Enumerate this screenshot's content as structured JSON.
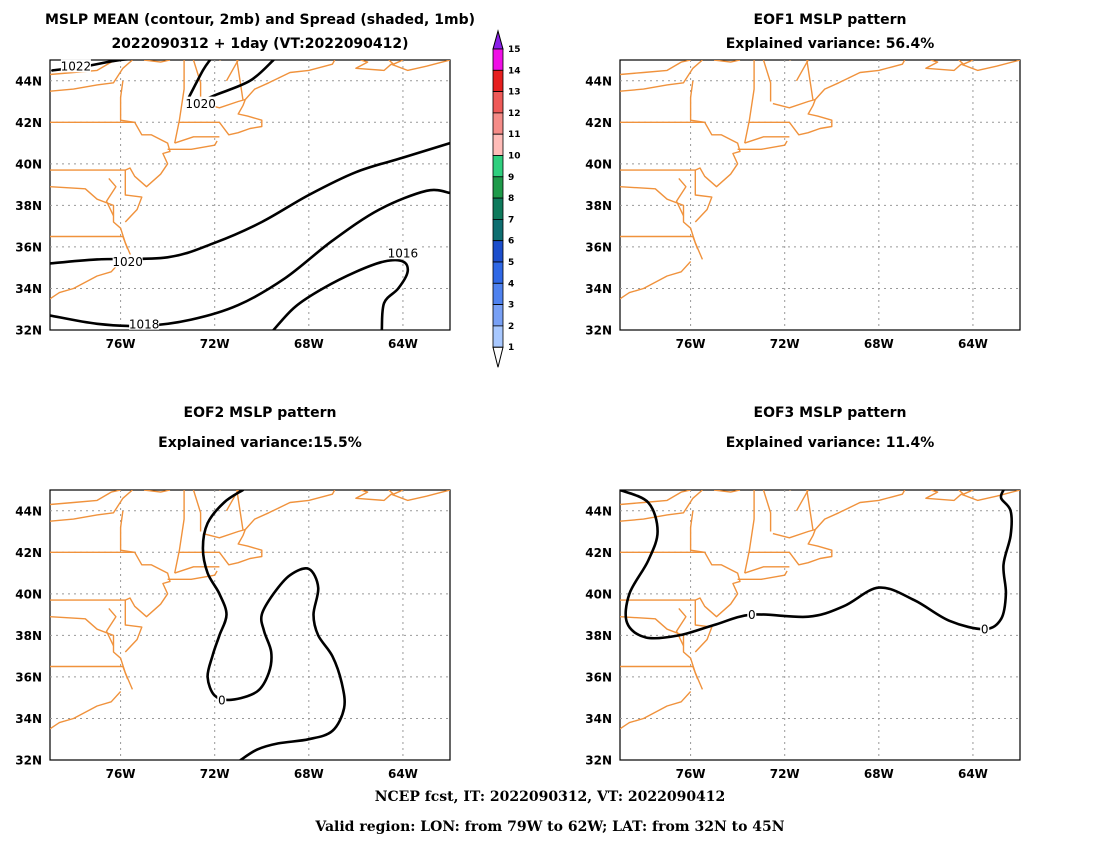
{
  "chart_data": [
    {
      "type": "contour",
      "title_lines": [
        "MSLP MEAN (contour, 2mb) and Spread (shaded, 1mb)",
        "2022090312 + 1day (VT:2022090412)"
      ],
      "region": {
        "lon": [
          -79,
          -62
        ],
        "lat": [
          32,
          45
        ]
      },
      "x_ticks": [
        -76,
        -72,
        -68,
        -64
      ],
      "x_tick_labels": [
        "76W",
        "72W",
        "68W",
        "64W"
      ],
      "y_ticks": [
        32,
        34,
        36,
        38,
        40,
        42,
        44
      ],
      "y_tick_labels": [
        "32N",
        "34N",
        "36N",
        "38N",
        "40N",
        "42N",
        "44N"
      ],
      "grid": true,
      "contours": [
        {
          "level": 1022,
          "label": "1022",
          "label_at": [
            -77.9,
            44.7
          ],
          "points": [
            [
              -78.9,
              44.5
            ],
            [
              -77.5,
              44.7
            ],
            [
              -76.0,
              45.0
            ],
            [
              -74.0,
              45.2
            ]
          ]
        },
        {
          "level": 1020,
          "label": "1020",
          "label_at": [
            -72.6,
            42.9
          ],
          "points": [
            [
              -73.0,
              42.8
            ],
            [
              -72.0,
              43.3
            ],
            [
              -70.5,
              44.0
            ],
            [
              -69.5,
              45.0
            ]
          ]
        },
        {
          "level": 1020,
          "label": "",
          "label_at": null,
          "points": [
            [
              -73.1,
              43.2
            ],
            [
              -72.5,
              44.5
            ],
            [
              -72.2,
              45.0
            ]
          ]
        },
        {
          "level": 1020,
          "label": "1020",
          "label_at": [
            -75.7,
            35.3
          ],
          "points": [
            [
              -79.0,
              35.2
            ],
            [
              -77.0,
              35.4
            ],
            [
              -74.0,
              35.5
            ],
            [
              -72.0,
              36.2
            ],
            [
              -70.0,
              37.2
            ],
            [
              -68.0,
              38.5
            ],
            [
              -66.0,
              39.6
            ],
            [
              -64.0,
              40.3
            ],
            [
              -62.0,
              41.0
            ]
          ]
        },
        {
          "level": 1018,
          "label": "1018",
          "label_at": [
            -75.0,
            32.3
          ],
          "points": [
            [
              -79.0,
              32.7
            ],
            [
              -77.0,
              32.3
            ],
            [
              -75.0,
              32.2
            ],
            [
              -73.0,
              32.5
            ],
            [
              -71.0,
              33.2
            ],
            [
              -69.0,
              34.5
            ],
            [
              -67.0,
              36.3
            ],
            [
              -65.0,
              37.8
            ],
            [
              -63.0,
              38.7
            ],
            [
              -62.0,
              38.6
            ]
          ]
        },
        {
          "level": 1016,
          "label": "",
          "label_at": null,
          "points": [
            [
              -69.5,
              32.0
            ],
            [
              -68.6,
              33.1
            ],
            [
              -67.4,
              34.0
            ],
            [
              -66.0,
              34.8
            ],
            [
              -64.8,
              35.3
            ],
            [
              -64.0,
              35.3
            ],
            [
              -63.8,
              34.8
            ],
            [
              -64.2,
              34.0
            ],
            [
              -64.8,
              33.3
            ],
            [
              -64.9,
              32.0
            ]
          ]
        },
        {
          "level": 1016,
          "label": "1016",
          "label_at": [
            -64.0,
            35.7
          ],
          "points": []
        }
      ],
      "colorbar": {
        "levels": [
          1,
          2,
          3,
          4,
          5,
          6,
          7,
          8,
          9,
          10,
          11,
          12,
          13,
          14,
          15
        ],
        "labels": [
          "1",
          "2",
          "3",
          "4",
          "5",
          "6",
          "7",
          "8",
          "9",
          "10",
          "11",
          "12",
          "13",
          "14",
          "15"
        ],
        "colors": [
          "#a8c8ff",
          "#78a0f5",
          "#4f82ef",
          "#2f68e6",
          "#1c4ecc",
          "#0e6e70",
          "#0e7a5c",
          "#1e9a4a",
          "#2fcf7e",
          "#ffbcb8",
          "#f58c88",
          "#ee5a58",
          "#e61f1f",
          "#f00fe6",
          "#8a1fe8"
        ]
      }
    },
    {
      "type": "contour",
      "title_lines": [
        "EOF1 MSLP pattern",
        "Explained variance: 56.4%"
      ],
      "region": {
        "lon": [
          -79,
          -62
        ],
        "lat": [
          32,
          45
        ]
      },
      "x_tick_labels": [
        "76W",
        "72W",
        "68W",
        "64W"
      ],
      "y_tick_labels": [
        "32N",
        "34N",
        "36N",
        "38N",
        "40N",
        "42N",
        "44N"
      ],
      "grid": true,
      "contours": []
    },
    {
      "type": "contour",
      "title_lines": [
        "EOF2 MSLP pattern",
        "Explained variance:15.5%"
      ],
      "region": {
        "lon": [
          -79,
          -62
        ],
        "lat": [
          32,
          45
        ]
      },
      "x_tick_labels": [
        "76W",
        "72W",
        "68W",
        "64W"
      ],
      "y_tick_labels": [
        "32N",
        "34N",
        "36N",
        "38N",
        "40N",
        "42N",
        "44N"
      ],
      "grid": true,
      "contours": [
        {
          "level": 0,
          "label": "0",
          "label_at": [
            -71.7,
            34.9
          ],
          "points": [
            [
              -70.8,
              45.0
            ],
            [
              -71.6,
              44.4
            ],
            [
              -72.3,
              43.4
            ],
            [
              -72.5,
              42.2
            ],
            [
              -72.3,
              41.0
            ],
            [
              -71.8,
              40.0
            ],
            [
              -71.5,
              39.0
            ],
            [
              -71.8,
              38.0
            ],
            [
              -72.1,
              37.0
            ],
            [
              -72.3,
              36.0
            ],
            [
              -72.0,
              35.1
            ],
            [
              -71.3,
              34.9
            ],
            [
              -70.2,
              35.3
            ],
            [
              -69.7,
              36.2
            ],
            [
              -69.6,
              37.2
            ],
            [
              -69.9,
              38.2
            ],
            [
              -70.0,
              39.0
            ],
            [
              -69.5,
              40.0
            ],
            [
              -68.8,
              40.9
            ],
            [
              -68.0,
              41.2
            ],
            [
              -67.6,
              40.3
            ],
            [
              -67.8,
              39.0
            ],
            [
              -67.6,
              38.0
            ],
            [
              -67.0,
              37.0
            ],
            [
              -66.6,
              35.7
            ],
            [
              -66.5,
              34.5
            ],
            [
              -67.0,
              33.4
            ],
            [
              -68.0,
              33.0
            ],
            [
              -69.3,
              32.8
            ],
            [
              -70.2,
              32.5
            ],
            [
              -70.9,
              32.0
            ]
          ]
        }
      ]
    },
    {
      "type": "contour",
      "title_lines": [
        "EOF3 MSLP pattern",
        "Explained variance: 11.4%"
      ],
      "region": {
        "lon": [
          -79,
          -62
        ],
        "lat": [
          32,
          45
        ]
      },
      "x_tick_labels": [
        "76W",
        "72W",
        "68W",
        "64W"
      ],
      "y_tick_labels": [
        "32N",
        "34N",
        "36N",
        "38N",
        "40N",
        "42N",
        "44N"
      ],
      "grid": true,
      "contours": [
        {
          "level": 0,
          "label": "0",
          "label_at": [
            -73.4,
            39.0
          ],
          "points": [
            [
              -79.0,
              45.0
            ],
            [
              -77.8,
              44.4
            ],
            [
              -77.4,
              43.0
            ],
            [
              -77.8,
              41.6
            ],
            [
              -78.6,
              40.0
            ],
            [
              -78.7,
              38.6
            ],
            [
              -77.9,
              37.9
            ],
            [
              -76.5,
              38.0
            ],
            [
              -75.0,
              38.5
            ],
            [
              -73.4,
              39.0
            ],
            [
              -71.0,
              38.9
            ],
            [
              -69.5,
              39.4
            ],
            [
              -68.0,
              40.3
            ],
            [
              -66.5,
              39.7
            ],
            [
              -65.0,
              38.7
            ],
            [
              -63.5,
              38.3
            ],
            [
              -62.8,
              38.8
            ],
            [
              -62.6,
              40.0
            ],
            [
              -62.7,
              41.4
            ],
            [
              -62.4,
              42.8
            ],
            [
              -62.4,
              44.0
            ],
            [
              -62.8,
              44.6
            ],
            [
              -62.7,
              45.0
            ]
          ]
        },
        {
          "level": 0,
          "label": "0",
          "label_at": [
            -63.5,
            38.3
          ],
          "points": []
        }
      ]
    }
  ],
  "footer": {
    "line1": "NCEP fcst, IT: 2022090312, VT: 2022090412",
    "line2": "Valid region: LON: from 79W to 62W; LAT: from 32N to 45N"
  },
  "colors": {
    "coast": "#f0923c",
    "contour": "#000000",
    "grid": "#999999"
  },
  "coastline": [
    [
      [
        -79.0,
        44.3
      ],
      [
        -78.0,
        44.4
      ],
      [
        -77.0,
        44.5
      ],
      [
        -76.4,
        44.9
      ],
      [
        -76.0,
        45.0
      ]
    ],
    [
      [
        -79.0,
        43.5
      ],
      [
        -78.0,
        43.6
      ],
      [
        -77.0,
        43.8
      ],
      [
        -76.3,
        43.9
      ],
      [
        -75.9,
        44.6
      ],
      [
        -75.5,
        45.0
      ]
    ],
    [
      [
        -75.9,
        44.0
      ],
      [
        -76.0,
        43.2
      ],
      [
        -76.0,
        42.1
      ],
      [
        -75.4,
        42.0
      ],
      [
        -75.1,
        41.4
      ],
      [
        -74.7,
        41.4
      ],
      [
        -74.0,
        41.0
      ],
      [
        -73.9,
        40.6
      ],
      [
        -74.2,
        40.5
      ],
      [
        -74.0,
        40.0
      ],
      [
        -74.3,
        39.5
      ],
      [
        -74.9,
        38.9
      ],
      [
        -75.4,
        39.4
      ],
      [
        -75.6,
        39.8
      ],
      [
        -75.8,
        39.7
      ]
    ],
    [
      [
        -75.0,
        45.0
      ],
      [
        -74.3,
        44.9
      ],
      [
        -73.9,
        45.0
      ]
    ],
    [
      [
        -73.3,
        45.0
      ],
      [
        -73.3,
        43.6
      ],
      [
        -73.5,
        42.1
      ],
      [
        -73.7,
        41.0
      ]
    ],
    [
      [
        -79.0,
        42.0
      ],
      [
        -75.4,
        42.0
      ]
    ],
    [
      [
        -79.0,
        39.7
      ],
      [
        -75.8,
        39.7
      ],
      [
        -75.8,
        38.5
      ],
      [
        -75.1,
        38.4
      ],
      [
        -75.3,
        37.8
      ],
      [
        -75.8,
        37.2
      ]
    ],
    [
      [
        -79.0,
        38.9
      ],
      [
        -77.5,
        38.8
      ],
      [
        -77.0,
        38.3
      ],
      [
        -76.3,
        38.0
      ],
      [
        -76.3,
        37.2
      ],
      [
        -76.0,
        36.9
      ],
      [
        -75.8,
        36.2
      ],
      [
        -75.5,
        35.4
      ]
    ],
    [
      [
        -76.5,
        39.3
      ],
      [
        -76.2,
        38.9
      ],
      [
        -76.6,
        38.2
      ],
      [
        -76.3,
        37.5
      ]
    ],
    [
      [
        -79.0,
        36.5
      ],
      [
        -75.9,
        36.5
      ],
      [
        -75.7,
        35.9
      ]
    ],
    [
      [
        -76.0,
        35.3
      ],
      [
        -76.4,
        34.8
      ],
      [
        -77.0,
        34.6
      ],
      [
        -78.0,
        34.0
      ],
      [
        -78.6,
        33.8
      ],
      [
        -79.0,
        33.5
      ]
    ],
    [
      [
        -72.9,
        45.0
      ],
      [
        -72.6,
        43.9
      ],
      [
        -72.6,
        43.0
      ]
    ],
    [
      [
        -72.5,
        42.9
      ],
      [
        -71.8,
        42.7
      ],
      [
        -71.0,
        43.0
      ],
      [
        -70.7,
        43.1
      ]
    ],
    [
      [
        -73.5,
        42.0
      ],
      [
        -71.8,
        42.0
      ],
      [
        -71.4,
        41.4
      ],
      [
        -71.0,
        41.5
      ],
      [
        -70.5,
        41.7
      ],
      [
        -70.0,
        41.8
      ],
      [
        -70.0,
        42.1
      ],
      [
        -70.6,
        42.3
      ],
      [
        -71.0,
        42.4
      ],
      [
        -70.8,
        42.8
      ],
      [
        -70.7,
        43.1
      ],
      [
        -70.3,
        43.6
      ],
      [
        -69.7,
        43.9
      ],
      [
        -68.8,
        44.4
      ],
      [
        -68.0,
        44.5
      ],
      [
        -67.0,
        44.8
      ],
      [
        -66.9,
        45.0
      ]
    ],
    [
      [
        -73.7,
        41.0
      ],
      [
        -72.9,
        41.3
      ],
      [
        -72.0,
        41.3
      ],
      [
        -71.8,
        41.3
      ]
    ],
    [
      [
        -74.0,
        40.7
      ],
      [
        -73.0,
        40.7
      ],
      [
        -72.0,
        40.9
      ],
      [
        -71.9,
        41.1
      ]
    ],
    [
      [
        -71.8,
        45.0
      ],
      [
        -71.1,
        45.3
      ],
      [
        -70.8,
        43.1
      ]
    ],
    [
      [
        -71.5,
        44.0
      ],
      [
        -71.0,
        45.0
      ]
    ],
    [
      [
        -65.8,
        45.0
      ],
      [
        -65.5,
        44.9
      ],
      [
        -66.0,
        44.6
      ],
      [
        -64.8,
        44.5
      ],
      [
        -64.5,
        44.8
      ],
      [
        -63.8,
        44.5
      ],
      [
        -63.0,
        44.7
      ],
      [
        -62.0,
        45.0
      ]
    ],
    [
      [
        -64.6,
        45.0
      ],
      [
        -64.4,
        44.8
      ],
      [
        -64.0,
        45.0
      ]
    ]
  ]
}
